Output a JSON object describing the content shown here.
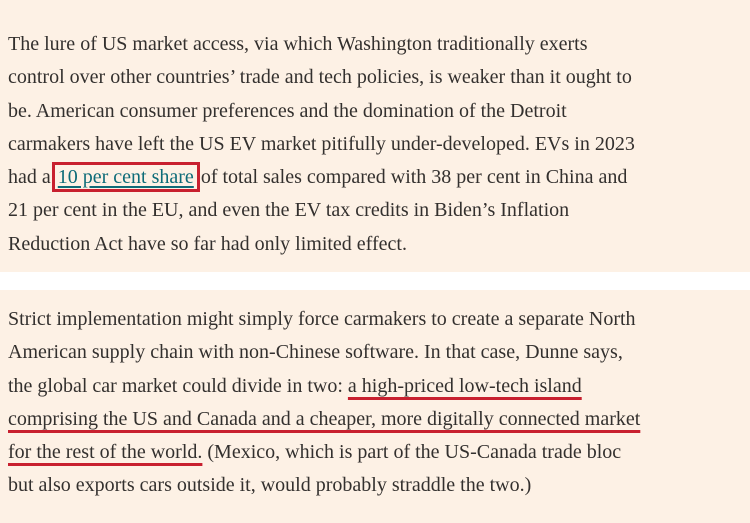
{
  "paragraphs": [
    {
      "lines": [
        [
          "The lure of US market access, via which Washington traditionally exerts"
        ],
        [
          "control over other countries’ trade and tech policies, is weaker than it ought to"
        ],
        [
          "be. American consumer preferences and the domination of the Detroit"
        ],
        [
          "carmakers have left the US EV market pitifully under-developed. EVs in 2023"
        ],
        [
          "had a ",
          "10 per cent share",
          " of total sales compared with 38 per cent in China and"
        ],
        [
          "21 per cent in the EU, and even the EV tax credits in Biden’s Inflation"
        ],
        [
          "Reduction Act have so far had only limited effect."
        ]
      ]
    },
    {
      "lines": [
        [
          "Strict implementation might simply force carmakers to create a separate North"
        ],
        [
          "American supply chain with non-Chinese software. In that case, Dunne says,"
        ],
        [
          "the global car market could divide in two: ",
          "a high-priced low-tech island"
        ],
        [
          "comprising the US and Canada and a cheaper, more digitally connected market"
        ],
        [
          "for the rest of the world.",
          " (Mexico, which is part of the US-Canada trade bloc"
        ],
        [
          "but also exports cars outside it, would probably straddle the two.)"
        ]
      ]
    }
  ]
}
